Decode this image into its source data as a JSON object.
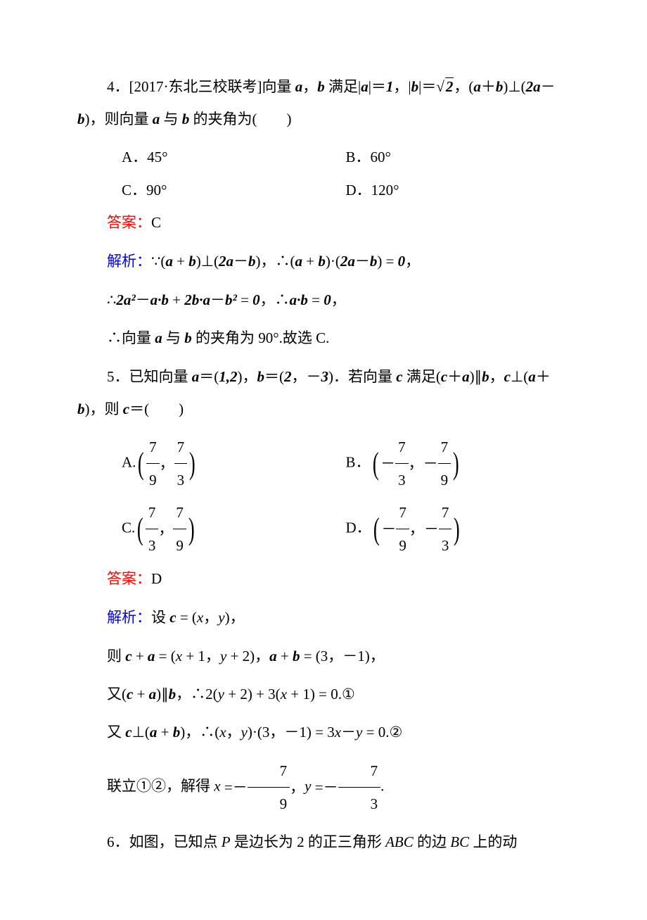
{
  "colors": {
    "text": "#000000",
    "background": "#ffffff",
    "answer_label": "#ff0000",
    "analysis_label": "#0000ff"
  },
  "typography": {
    "body_font": "SimSun",
    "label_font": "SimHei",
    "math_font": "Times New Roman",
    "body_fontsize_pt": 16,
    "line_height": 2.2
  },
  "q4": {
    "stem_prefix": "4．[2017·东北三校联考]向量 ",
    "stem_mid1": "，",
    "stem_mid2": " 满足|",
    "stem_eq1": "|＝",
    "val_a": "1",
    "stem_comma": "，|",
    "stem_eq2": "|＝",
    "sqrt_val": "2",
    "stem_after_sqrt": "，(",
    "stem_plus": "＋",
    "stem_perp": ")⊥(",
    "stem_2a": "2",
    "stem_minus": "－",
    "stem_close": ")，则向量 ",
    "stem_with": " 与 ",
    "stem_angle": " 的夹角为(　　)",
    "opt_A": "A．45°",
    "opt_B": "B．60°",
    "opt_C": "C．90°",
    "opt_D": "D．120°",
    "answer_label": "答案：",
    "answer": "C",
    "jx_label": "解析：",
    "jx_l1_a": "∵(",
    "jx_l1_b": " + ",
    "jx_l1_c": ")⊥(",
    "jx_l1_d": "2",
    "jx_l1_e": "－",
    "jx_l1_f": ")，∴(",
    "jx_l1_g": " + ",
    "jx_l1_h": ")·(",
    "jx_l1_i": "2",
    "jx_l1_j": "－",
    "jx_l1_k": ") = ",
    "jx_l1_l": "0",
    "jx_l1_m": "，",
    "jx_l2_a": "∴",
    "jx_l2_b": "2",
    "jx_l2_c": "²",
    "jx_l2_d": "－",
    "jx_l2_e": "·",
    "jx_l2_f": " + ",
    "jx_l2_g": "2",
    "jx_l2_h": "·",
    "jx_l2_i": "－",
    "jx_l2_j": "²",
    "jx_l2_k": " = ",
    "jx_l2_l": "0",
    "jx_l2_m": "，∴",
    "jx_l2_n": "·",
    "jx_l2_o": " = ",
    "jx_l2_p": "0",
    "jx_l2_q": "，",
    "jx_l3_a": "∴向量 ",
    "jx_l3_b": " 与 ",
    "jx_l3_c": " 的夹角为 90°.故选 C."
  },
  "q5": {
    "stem_a": "5．已知向量 ",
    "stem_b": "＝(",
    "stem_c": "1,2",
    "stem_d": ")，",
    "stem_e": "＝(",
    "stem_f": "2",
    "stem_g": "，－",
    "stem_h": "3",
    "stem_i": ")．若向量 ",
    "stem_j": " 满足(",
    "stem_k": "＋",
    "stem_l": ")∥",
    "stem_m": "，",
    "stem_n": "⊥(",
    "stem_o": "＋",
    "stem_p": ")，则 ",
    "stem_q": "＝(　　)",
    "opt_A_label": "A.",
    "opt_B_label": "B．",
    "opt_C_label": "C.",
    "opt_D_label": "D．",
    "A_n1": "7",
    "A_d1": "9",
    "A_n2": "7",
    "A_d2": "3",
    "B_n1": "7",
    "B_d1": "3",
    "B_n2": "7",
    "B_d2": "9",
    "C_n1": "7",
    "C_d1": "3",
    "C_n2": "7",
    "C_d2": "9",
    "D_n1": "7",
    "D_d1": "9",
    "D_n2": "7",
    "D_d2": "3",
    "neg": "－",
    "comma": "，",
    "answer_label": "答案：",
    "answer": "D",
    "jx_label": "解析：",
    "jx_l1_a": "设 ",
    "jx_l1_b": " = (",
    "jx_l1_c": "，",
    "jx_l1_d": ")，",
    "jx_l2_a": "则 ",
    "jx_l2_b": " + ",
    "jx_l2_c": " = (",
    "jx_l2_d": " + 1，",
    "jx_l2_e": " + 2)，",
    "jx_l2_f": " + ",
    "jx_l2_g": " = (3，－1)，",
    "jx_l3_a": "又(",
    "jx_l3_b": " + ",
    "jx_l3_c": ")∥",
    "jx_l3_d": "，∴2(",
    "jx_l3_e": " + 2) + 3(",
    "jx_l3_f": " + 1) = 0.①",
    "jx_l4_a": "又 ",
    "jx_l4_b": "⊥(",
    "jx_l4_c": " + ",
    "jx_l4_d": ")，∴(",
    "jx_l4_e": "，",
    "jx_l4_f": ")·(3，－1) = 3",
    "jx_l4_g": "－",
    "jx_l4_h": " = 0.②",
    "jx_l5_a": "联立①②，解得 ",
    "jx_l5_b": " =－",
    "jx_l5_c": "，",
    "jx_l5_d": " =－",
    "jx_l5_e": ".",
    "sol_n1": "7",
    "sol_d1": "9",
    "sol_n2": "7",
    "sol_d2": "3"
  },
  "q6": {
    "stem_a": "6．如图，已知点 ",
    "P": "P",
    "stem_b": " 是边长为 2 的正三角形 ",
    "ABC": "ABC",
    "stem_c": " 的边 ",
    "BC": "BC",
    "stem_d": " 上的动"
  }
}
